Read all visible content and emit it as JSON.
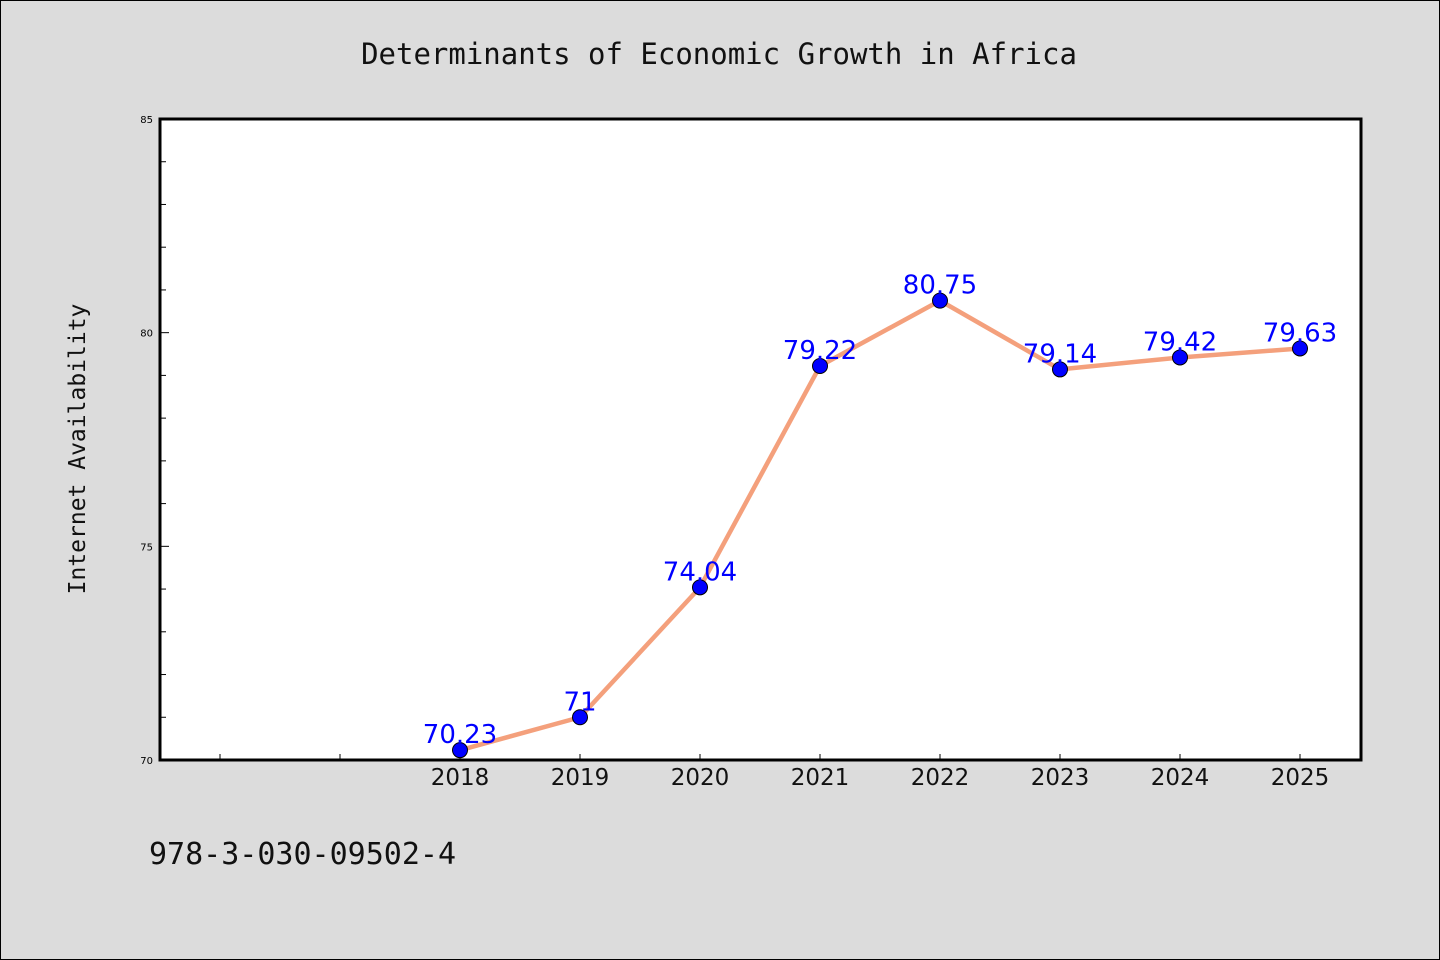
{
  "chart_data": {
    "type": "line",
    "title": "Determinants of Economic Growth in Africa",
    "xlabel": "",
    "ylabel": "Internet Availability",
    "categories": [
      "2018",
      "2019",
      "2020",
      "2021",
      "2022",
      "2023",
      "2024",
      "2025"
    ],
    "series": [
      {
        "values": [
          70.23,
          71,
          74.04,
          79.22,
          80.75,
          79.14,
          79.42,
          79.63
        ],
        "labels": [
          "70.23",
          "71",
          "74.04",
          "79.22",
          "80.75",
          "79.14",
          "79.42",
          "79.63"
        ]
      }
    ],
    "ylim": [
      70,
      85
    ],
    "yticks": [
      "70",
      "75",
      "80",
      "85"
    ],
    "grid": false,
    "line_color": "#f4a07c",
    "marker_color": "#0000ff",
    "label_color": "#0000ff",
    "background_color": "#dcdcdc",
    "plot_background": "#ffffff"
  },
  "footer": {
    "isbn": "978-3-030-09502-4"
  }
}
